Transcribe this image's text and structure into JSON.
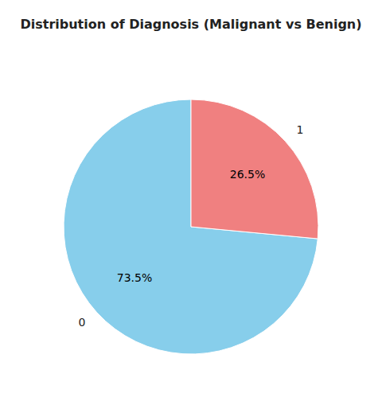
{
  "chart_data": {
    "type": "pie",
    "title": "Distribution of Diagnosis (Malignant vs Benign)",
    "categories": [
      "0",
      "1"
    ],
    "values": [
      73.5,
      26.5
    ],
    "value_labels": [
      "73.5%",
      "26.5%"
    ],
    "colors": [
      "#87CEEB",
      "#F08080"
    ],
    "data_labels": true
  }
}
